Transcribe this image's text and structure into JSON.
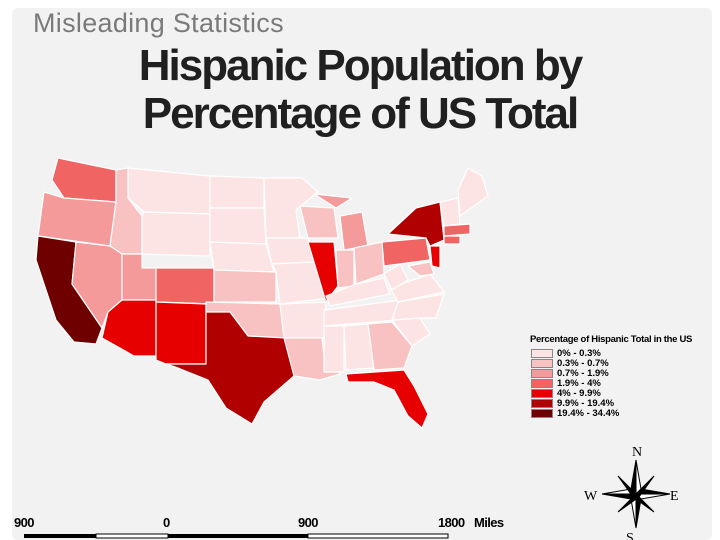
{
  "header": "Misleading Statistics",
  "title_line1": "Hispanic Population by",
  "title_line2": "Percentage of US Total",
  "legend": {
    "title": "Percentage of Hispanic Total in the US",
    "items": [
      {
        "label": "0% - 0.3%",
        "color": "#fde4e4"
      },
      {
        "label": "0.3% - 0.7%",
        "color": "#f9c2c2"
      },
      {
        "label": "0.7% - 1.9%",
        "color": "#f49a9a"
      },
      {
        "label": "1.9% - 4%",
        "color": "#f06464"
      },
      {
        "label": "4% - 9.9%",
        "color": "#e60000"
      },
      {
        "label": "9.9% - 19.4%",
        "color": "#b00000"
      },
      {
        "label": "19.4% - 34.4%",
        "color": "#6e0000"
      }
    ]
  },
  "scale_bar": {
    "labels": [
      "900",
      "0",
      "900",
      "1800",
      "Miles"
    ]
  },
  "compass": {
    "n": "N",
    "s": "S",
    "e": "E",
    "w": "W"
  }
}
